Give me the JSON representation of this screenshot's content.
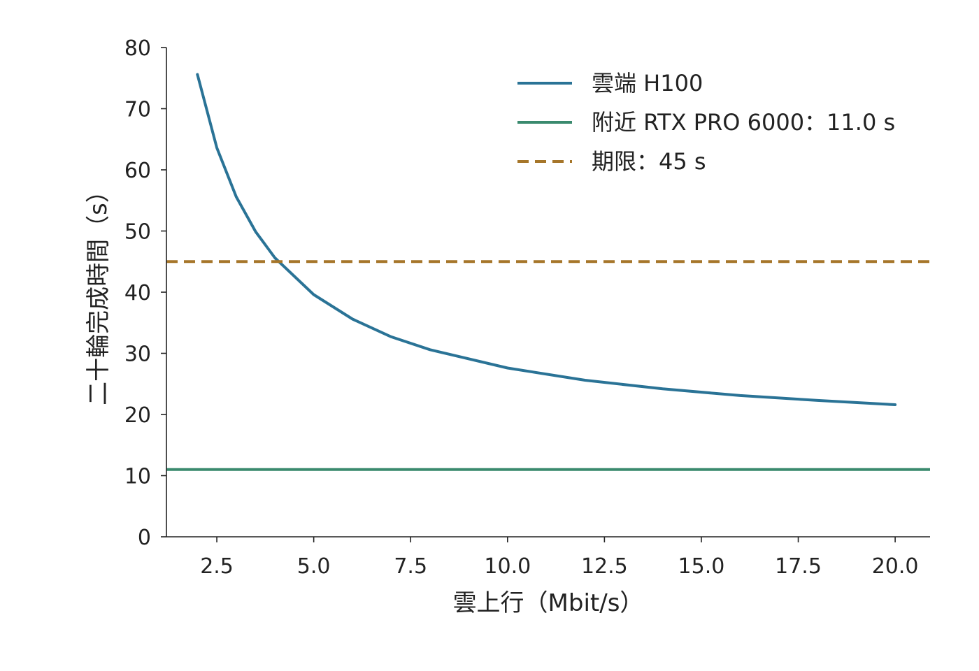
{
  "chart_data": {
    "type": "line",
    "title": "",
    "xlabel": "雲上行（Mbit/s）",
    "ylabel": "二十輪完成時間（s）",
    "xlim": [
      1.2,
      20.9
    ],
    "ylim": [
      0,
      80
    ],
    "xticks": [
      2.5,
      5.0,
      7.5,
      10.0,
      12.5,
      15.0,
      17.5,
      20.0
    ],
    "xtick_labels": [
      "2.5",
      "5.0",
      "7.5",
      "10.0",
      "12.5",
      "15.0",
      "17.5",
      "20.0"
    ],
    "yticks": [
      0,
      10,
      20,
      30,
      40,
      50,
      60,
      70,
      80
    ],
    "ytick_labels": [
      "0",
      "10",
      "20",
      "30",
      "40",
      "50",
      "60",
      "70",
      "80"
    ],
    "grid": false,
    "legend_position": "top-right",
    "series": [
      {
        "name": "雲端 H100",
        "kind": "curve",
        "color": "#2a7396",
        "x": [
          2.0,
          2.5,
          3.0,
          3.5,
          4.0,
          5.0,
          6.0,
          7.0,
          8.0,
          10.0,
          12.0,
          14.0,
          16.0,
          18.0,
          20.0
        ],
        "y": [
          75.6,
          63.6,
          55.6,
          49.9,
          45.6,
          39.6,
          35.6,
          32.7,
          30.6,
          27.6,
          25.6,
          24.2,
          23.1,
          22.3,
          21.6
        ]
      },
      {
        "name": "附近 RTX PRO 6000：11.0 s",
        "kind": "hline",
        "color": "#3a8a6e",
        "y": 11.0
      },
      {
        "name": "期限：45 s",
        "kind": "hline-dashed",
        "color": "#a6762a",
        "y": 45
      }
    ]
  }
}
